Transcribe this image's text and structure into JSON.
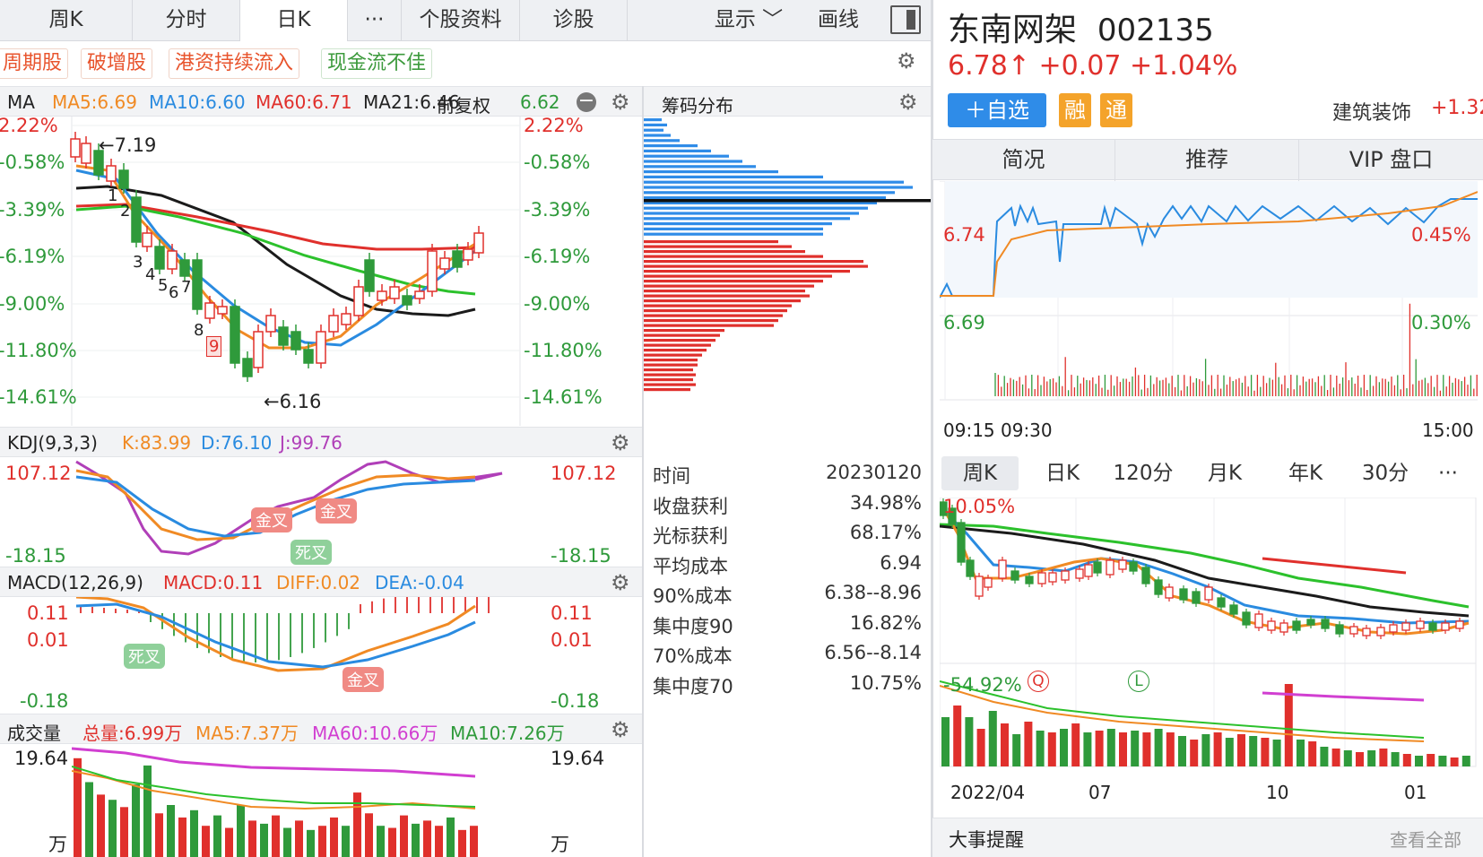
{
  "tabs": [
    "周K",
    "分时",
    "日K",
    "···",
    "个股资料",
    "诊股",
    "显示",
    "画线"
  ],
  "tags": [
    "周期股",
    "破增股",
    "港资持续流入",
    "现金流不佳"
  ],
  "ma": {
    "label": "MA",
    "ma5": "MA5:6.69",
    "ma10": "MA10:6.60",
    "ma60": "MA60:6.71",
    "ma21": "MA21:6.46",
    "fq": "前复权",
    "extra": "6.62"
  },
  "main_y": [
    "2.22%",
    "-0.58%",
    "-3.39%",
    "-6.19%",
    "-9.00%",
    "-11.80%",
    "-14.61%"
  ],
  "main_annot": {
    "high": "←7.19",
    "low": "←6.16",
    "nums": [
      "1",
      "2",
      "3",
      "4",
      "5",
      "6",
      "7",
      "8",
      "9"
    ]
  },
  "chip": {
    "title": "筹码分布"
  },
  "kdj": {
    "label": "KDJ(9,3,3)",
    "k": "K:83.99",
    "d": "D:76.10",
    "j": "J:99.76",
    "top": "107.12",
    "bottom": "-18.15",
    "jin1": "金叉",
    "jin2": "金叉",
    "si": "死叉"
  },
  "macd": {
    "label": "MACD(12,26,9)",
    "macd": "MACD:0.11",
    "diff": "DIFF:0.02",
    "dea": "DEA:-0.04",
    "y1": "0.11",
    "y2": "0.01",
    "y3": "-0.18",
    "si": "死叉",
    "jin": "金叉"
  },
  "vol": {
    "label": "成交量",
    "total": "总量:6.99万",
    "ma5": "MA5:7.37万",
    "ma60": "MA60:10.66万",
    "ma10": "MA10:7.26万",
    "top": "19.64",
    "unit": "万"
  },
  "stats": [
    {
      "k": "时间",
      "v": "20230120"
    },
    {
      "k": "收盘获利",
      "v": "34.98%"
    },
    {
      "k": "光标获利",
      "v": "68.17%"
    },
    {
      "k": "平均成本",
      "v": "6.94"
    },
    {
      "k": "90%成本",
      "v": "6.38--8.96"
    },
    {
      "k": "集中度90",
      "v": "16.82%"
    },
    {
      "k": "70%成本",
      "v": "6.56--8.14"
    },
    {
      "k": "集中度70",
      "v": "10.75%"
    }
  ],
  "stock": {
    "name": "东南网架",
    "code": "002135",
    "price": "6.78↑",
    "change": "+0.07",
    "pct": "+1.04%",
    "add": "＋自选",
    "b1": "融",
    "b2": "通",
    "sector": "建筑装饰",
    "sector_pct": "+1.32"
  },
  "rtabs": [
    "简况",
    "推荐",
    "VIP 盘口"
  ],
  "intraday": {
    "p1": "6.74",
    "p2": "6.69",
    "r1": "0.45%",
    "r2": "0.30%",
    "t1": "09:15 09:30",
    "t2": "15:00"
  },
  "ktabs": [
    "周K",
    "日K",
    "120分",
    "月K",
    "年K",
    "30分",
    "···"
  ],
  "weekly": {
    "top": "10.05%",
    "bottom": "-54.92%",
    "q": "Q",
    "l": "L",
    "x": [
      "2022/04",
      "07",
      "10",
      "01"
    ]
  },
  "footer": {
    "title": "大事提醒",
    "more": "查看全部"
  }
}
